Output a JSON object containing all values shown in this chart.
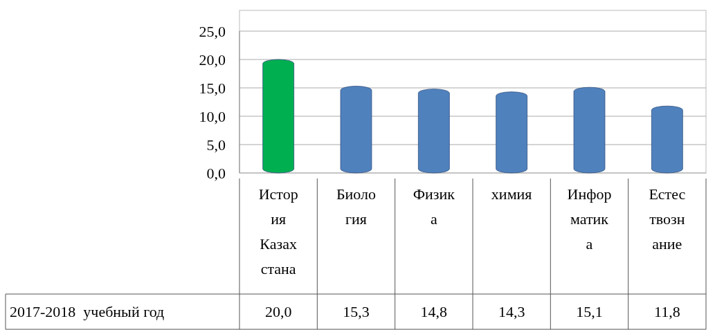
{
  "chart_data": {
    "type": "bar",
    "categories": [
      "История Казахстана",
      "Биология",
      "Физика",
      "химия",
      "Информатика",
      "Естествознание"
    ],
    "series": [
      {
        "name": "2017-2018  учебный год",
        "colors": [
          "#00b050",
          "#4f81bd",
          "#4f81bd",
          "#4f81bd",
          "#4f81bd",
          "#4f81bd"
        ],
        "values": [
          20.0,
          15.3,
          14.8,
          14.3,
          15.1,
          11.8
        ],
        "value_labels": [
          "20,0",
          "15,3",
          "14,8",
          "14,3",
          "15,1",
          "11,8"
        ]
      }
    ],
    "ylim": [
      0,
      25
    ],
    "yticks": [
      {
        "value": 0,
        "label": "0,0"
      },
      {
        "value": 5,
        "label": "5,0"
      },
      {
        "value": 10,
        "label": "10,0"
      },
      {
        "value": 15,
        "label": "15,0"
      },
      {
        "value": 20,
        "label": "20,0"
      },
      {
        "value": 25,
        "label": "25,0"
      }
    ],
    "grid": "y"
  }
}
